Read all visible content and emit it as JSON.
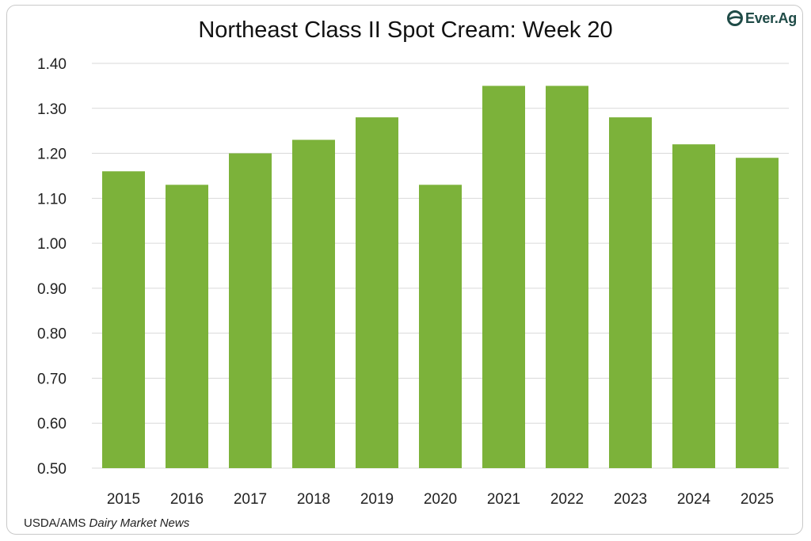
{
  "logo": {
    "text": "Ever.Ag",
    "color": "#1f4b47",
    "icon": "ever-ag-leaf-icon"
  },
  "source": {
    "prefix": "USDA/AMS ",
    "italic": "Dairy Market News"
  },
  "chart_data": {
    "type": "bar",
    "title": "Northeast Class II Spot Cream: Week 20",
    "xlabel": "",
    "ylabel": "",
    "categories": [
      "2015",
      "2016",
      "2017",
      "2018",
      "2019",
      "2020",
      "2021",
      "2022",
      "2023",
      "2024",
      "2025"
    ],
    "values": [
      1.16,
      1.13,
      1.2,
      1.23,
      1.28,
      1.13,
      1.35,
      1.35,
      1.28,
      1.22,
      1.19
    ],
    "ylim": [
      0.5,
      1.4
    ],
    "yticks": [
      "0.50",
      "0.60",
      "0.70",
      "0.80",
      "0.90",
      "1.00",
      "1.10",
      "1.20",
      "1.30",
      "1.40"
    ],
    "grid": true,
    "legend": "none",
    "bar_color": "#7cb23a",
    "grid_color": "#d9d9d9"
  }
}
